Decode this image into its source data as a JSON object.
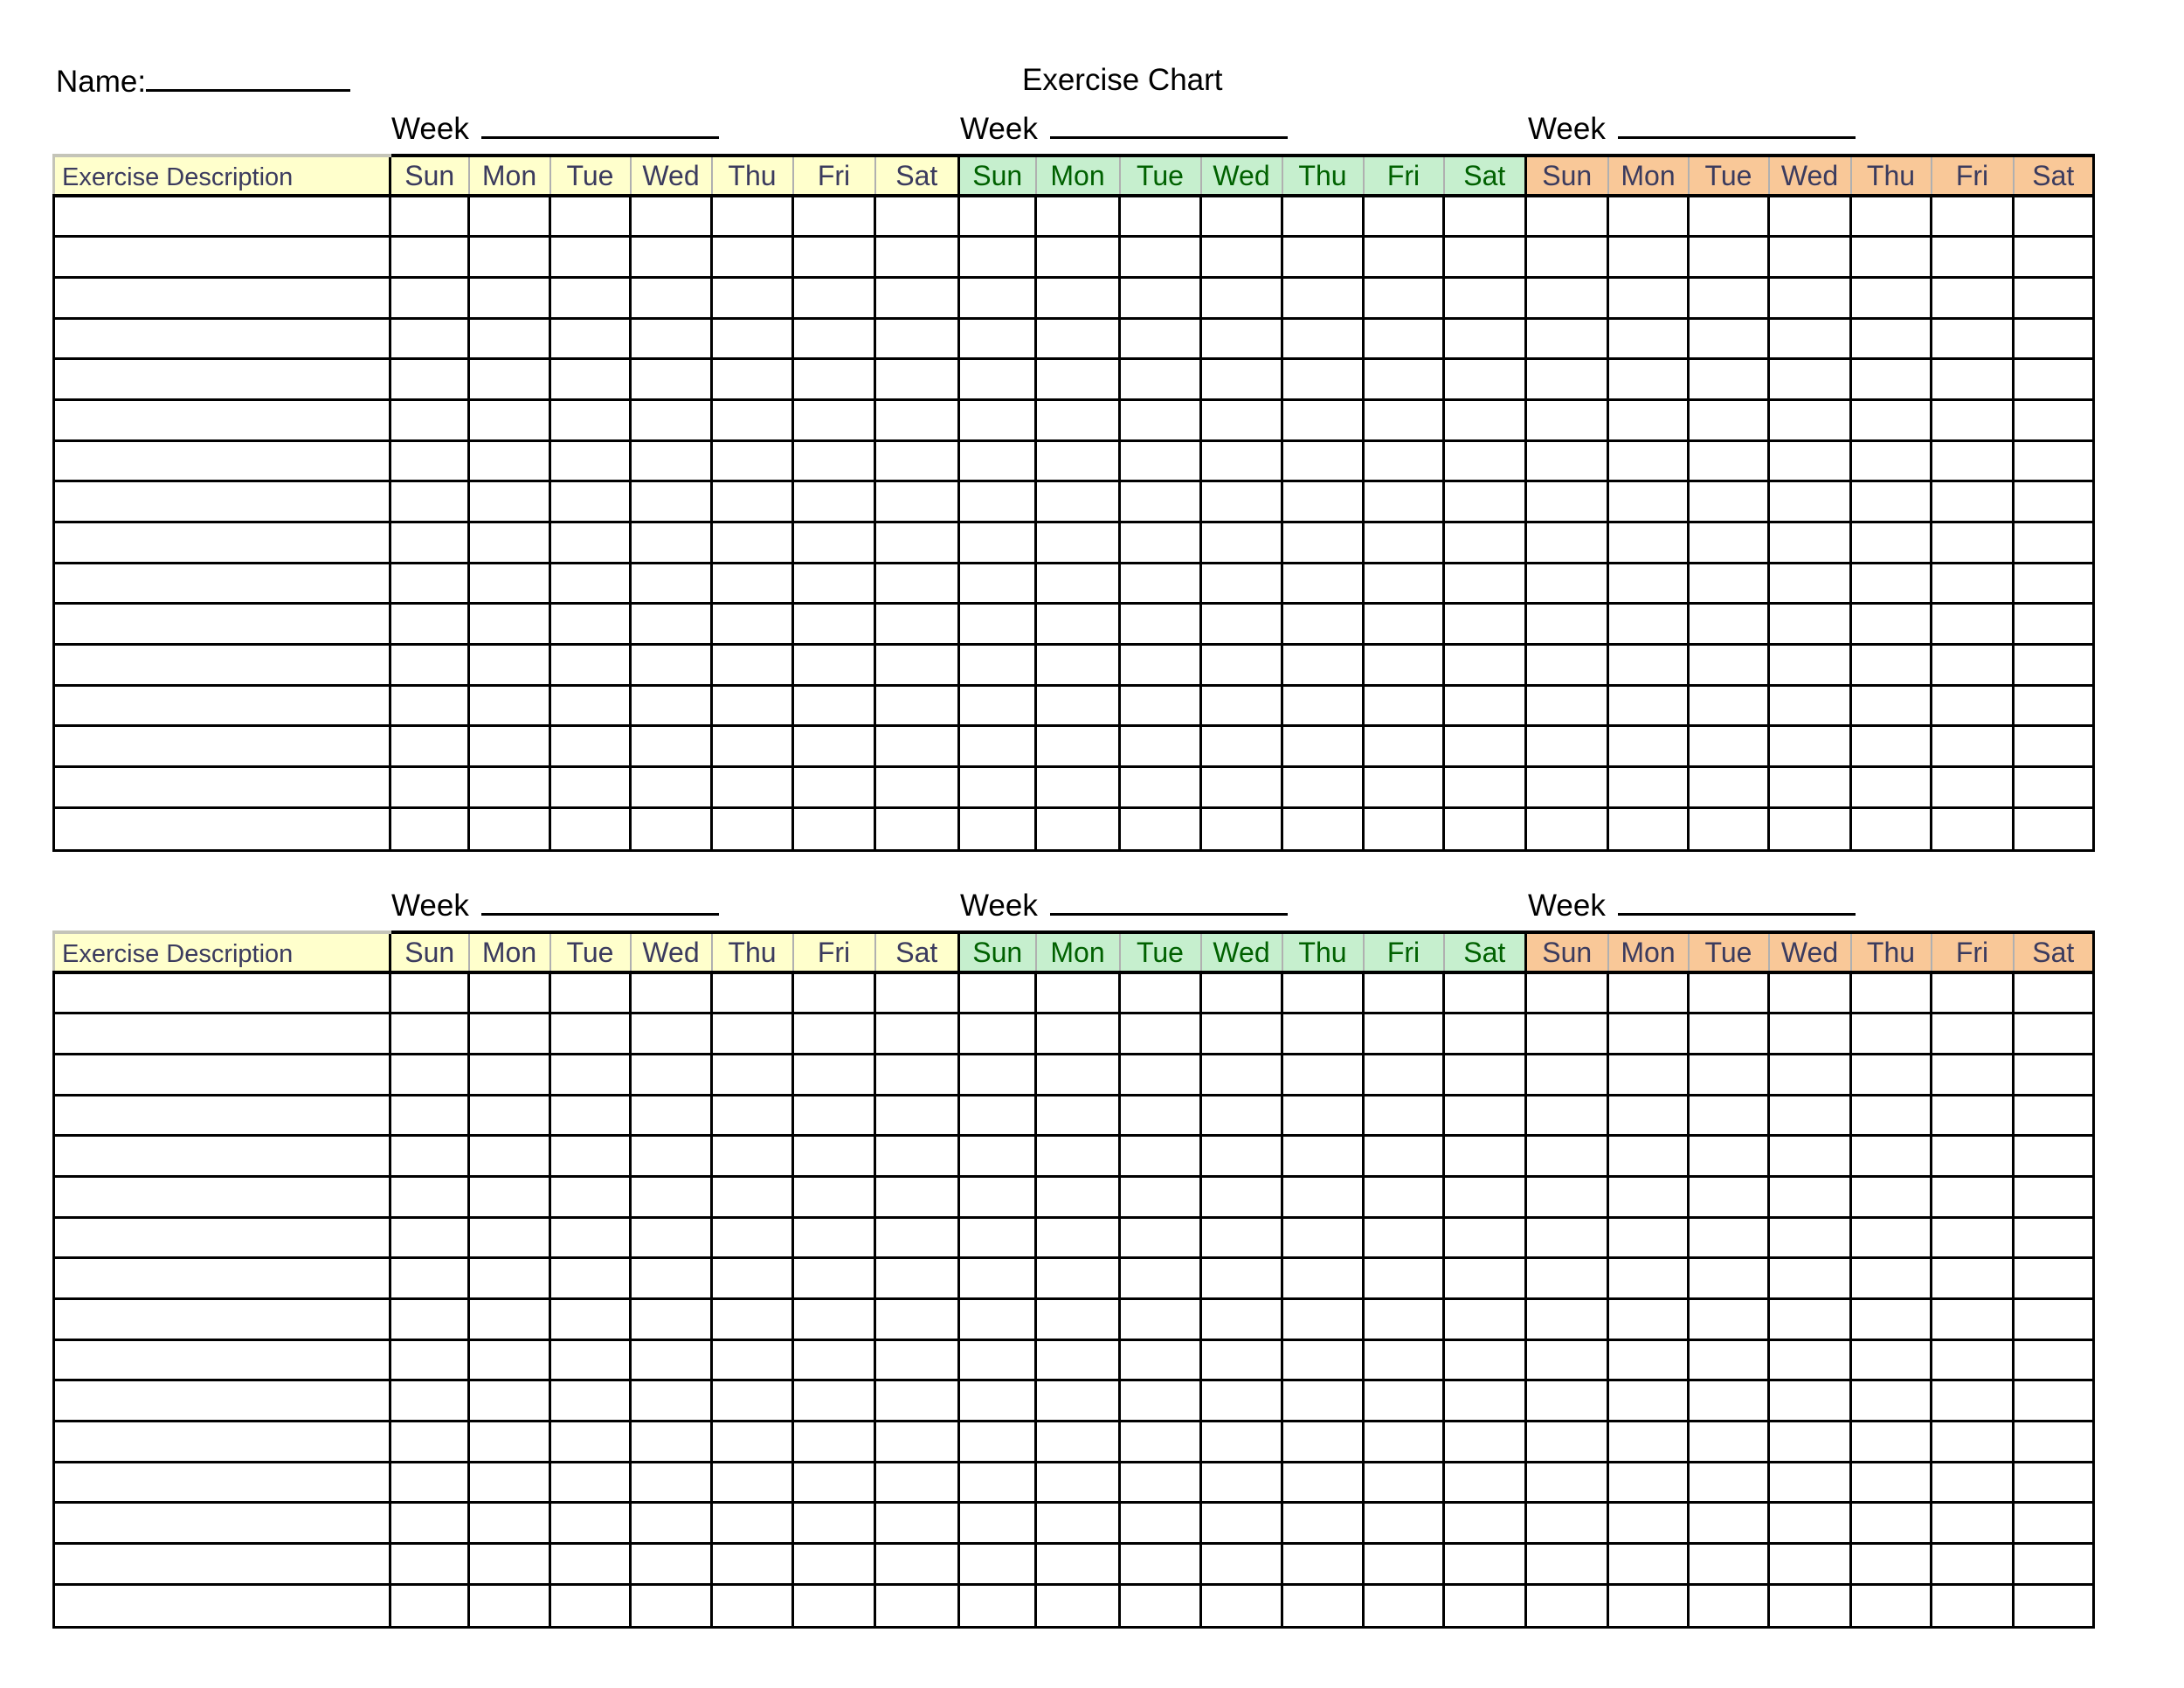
{
  "header": {
    "name_label": "Name:",
    "title": "Exercise Chart"
  },
  "colors": {
    "yellow_bg": "#ffffcc",
    "green_bg": "#c6efce",
    "orange_bg": "#f9c898",
    "yellow_text": "#3b3b5e",
    "green_text": "#006100",
    "orange_text": "#3b3b5e"
  },
  "tables": [
    {
      "week_labels": [
        "Week",
        "Week",
        "Week"
      ],
      "description_header": "Exercise Description",
      "weeks": [
        {
          "theme": "yellow",
          "days": [
            "Sun",
            "Mon",
            "Tue",
            "Wed",
            "Thu",
            "Fri",
            "Sat"
          ]
        },
        {
          "theme": "green",
          "days": [
            "Sun",
            "Mon",
            "Tue",
            "Wed",
            "Thu",
            "Fri",
            "Sat"
          ]
        },
        {
          "theme": "orange",
          "days": [
            "Sun",
            "Mon",
            "Tue",
            "Wed",
            "Thu",
            "Fri",
            "Sat"
          ]
        }
      ]
    },
    {
      "week_labels": [
        "Week",
        "Week",
        "Week"
      ],
      "description_header": "Exercise Description",
      "weeks": [
        {
          "theme": "yellow",
          "days": [
            "Sun",
            "Mon",
            "Tue",
            "Wed",
            "Thu",
            "Fri",
            "Sat"
          ]
        },
        {
          "theme": "green",
          "days": [
            "Sun",
            "Mon",
            "Tue",
            "Wed",
            "Thu",
            "Fri",
            "Sat"
          ]
        },
        {
          "theme": "orange",
          "days": [
            "Sun",
            "Mon",
            "Tue",
            "Wed",
            "Thu",
            "Fri",
            "Sat"
          ]
        }
      ]
    }
  ]
}
